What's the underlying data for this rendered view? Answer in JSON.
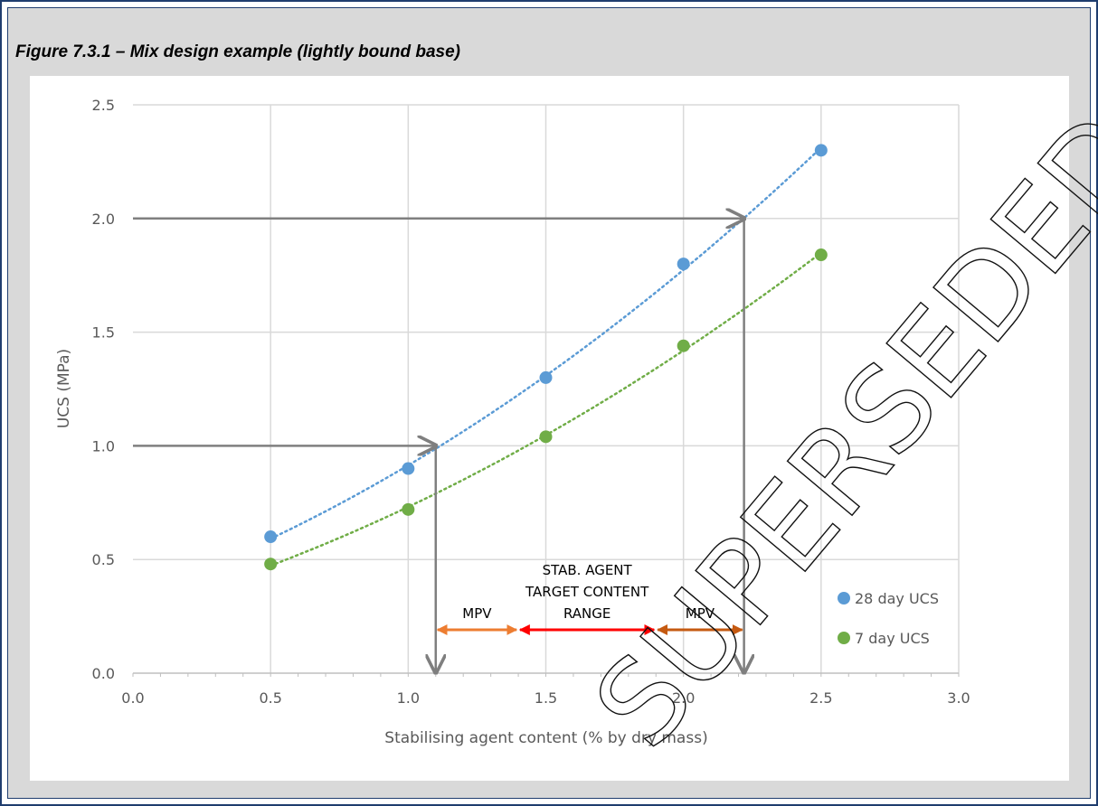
{
  "figure": {
    "title": "Figure 7.3.1 – Mix design example (lightly bound base)"
  },
  "chart_data": {
    "type": "scatter",
    "xlabel": "Stabilising agent content (% by dry mass)",
    "ylabel": "UCS (MPa)",
    "xlim": [
      0,
      3
    ],
    "ylim": [
      0,
      2.5
    ],
    "xticks": [
      0.0,
      0.5,
      1.0,
      1.5,
      2.0,
      2.5,
      3.0
    ],
    "yticks": [
      0.0,
      0.5,
      1.0,
      1.5,
      2.0,
      2.5
    ],
    "xtick_labels": [
      "0.0",
      "0.5",
      "1.0",
      "1.5",
      "2.0",
      "2.5",
      "3.0"
    ],
    "ytick_labels": [
      "0.0",
      "0.5",
      "1.0",
      "1.5",
      "2.0",
      "2.5"
    ],
    "grid": true,
    "legend_position": "right",
    "series": [
      {
        "name": "28 day UCS",
        "color": "#5b9bd5",
        "trendline": "dotted",
        "x": [
          0.5,
          1.0,
          1.5,
          2.0,
          2.5
        ],
        "y": [
          0.6,
          0.9,
          1.3,
          1.8,
          2.3
        ]
      },
      {
        "name": "7 day UCS",
        "color": "#70ad47",
        "trendline": "dotted",
        "x": [
          0.5,
          1.0,
          1.5,
          2.0,
          2.5
        ],
        "y": [
          0.48,
          0.72,
          1.04,
          1.44,
          1.84
        ]
      }
    ],
    "reference_lines": [
      {
        "ucs": 1.0,
        "content": 1.1
      },
      {
        "ucs": 2.0,
        "content": 2.22
      }
    ],
    "ranges": [
      {
        "label": "MPV",
        "from": 1.1,
        "to": 1.4,
        "color": "#ed7d31"
      },
      {
        "label_lines": [
          "STAB. AGENT",
          "TARGET CONTENT",
          "RANGE"
        ],
        "from": 1.4,
        "to": 1.9,
        "color": "#ff0000"
      },
      {
        "label": "MPV",
        "from": 1.9,
        "to": 2.22,
        "color": "#c55a11"
      }
    ],
    "ref_line_color": "#7f7f7f",
    "watermark": "SUPERSEDED"
  }
}
